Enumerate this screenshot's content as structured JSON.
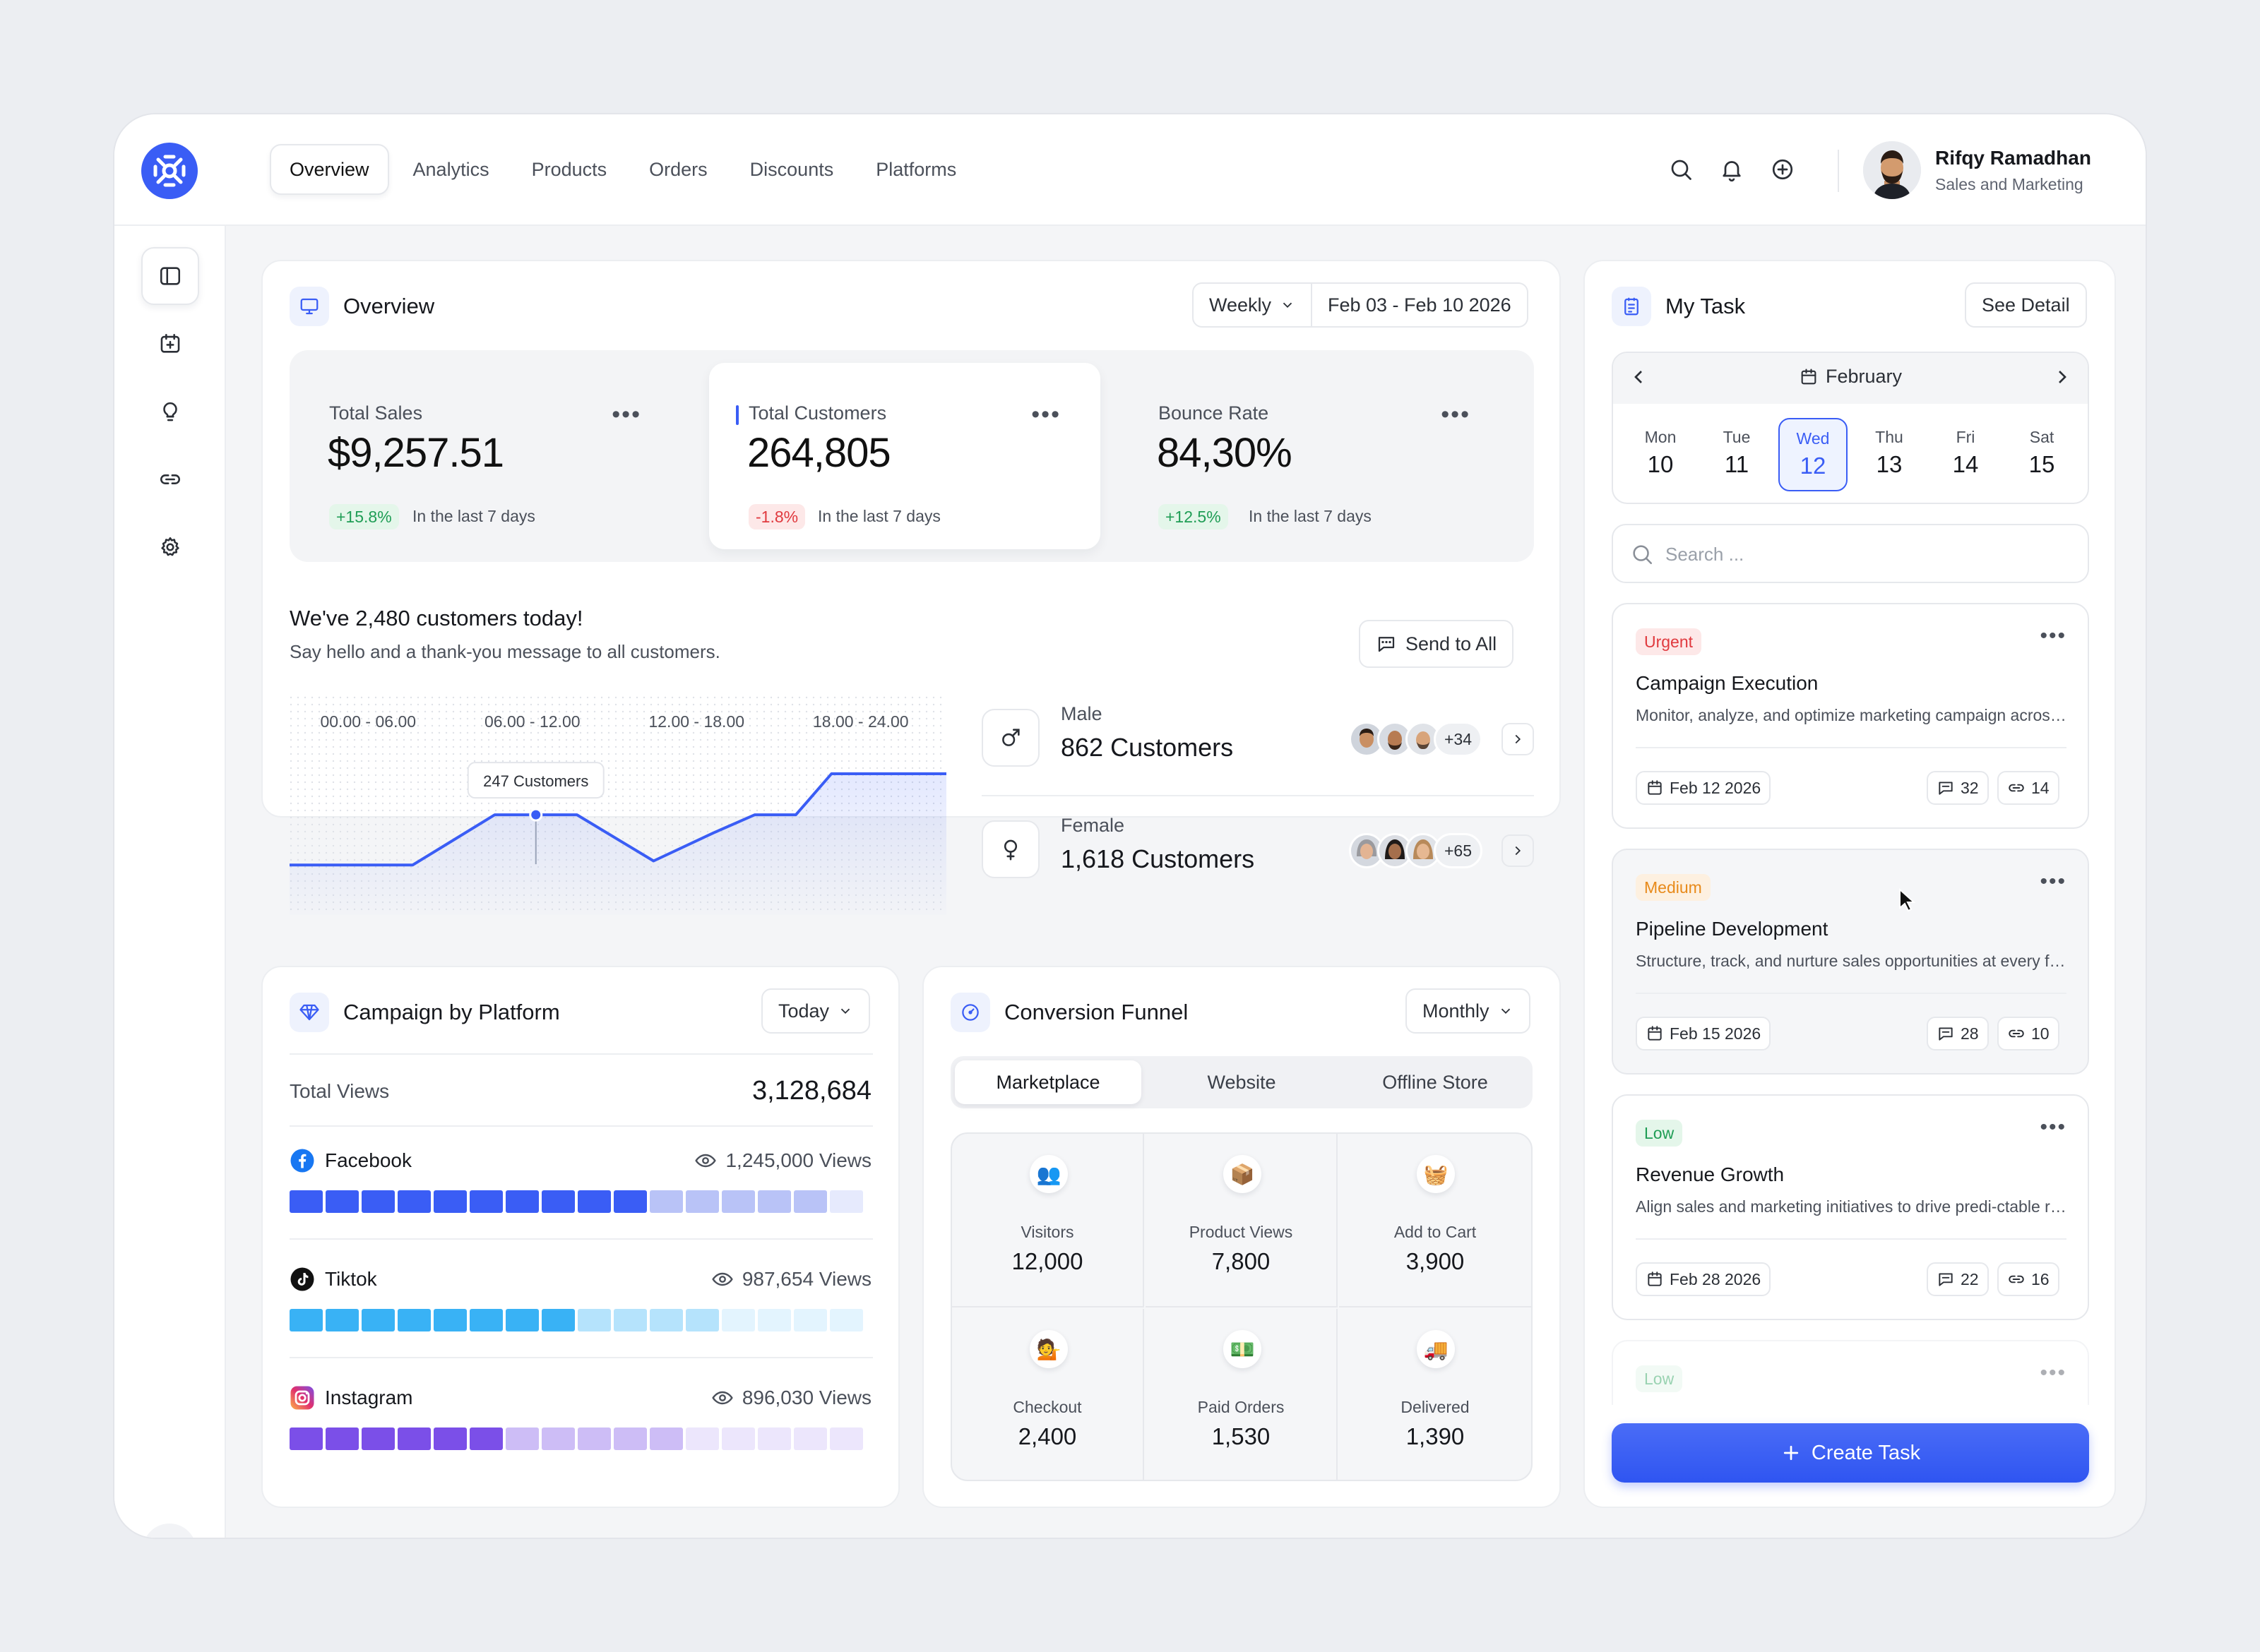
{
  "nav": {
    "items": [
      "Overview",
      "Analytics",
      "Products",
      "Orders",
      "Discounts",
      "Platforms"
    ],
    "active": "Overview"
  },
  "user": {
    "name": "Rifqy Ramadhan",
    "role": "Sales and Marketing"
  },
  "topbar_icons": [
    "search-icon",
    "bell-icon",
    "plus-circle-icon"
  ],
  "sidebar_icons": [
    "sidebar-panel-icon",
    "calendar-add-icon",
    "lightbulb-icon",
    "link-icon",
    "settings-icon"
  ],
  "theme": {
    "dark": "moon-icon",
    "light": "sun-icon",
    "active": "light"
  },
  "overview": {
    "title": "Overview",
    "period": "Weekly",
    "date_range": "Feb 03 - Feb 10 2026",
    "stats": [
      {
        "label": "Total Sales",
        "value": "$9,257.51",
        "change": "+15.8%",
        "trend": "up",
        "note": "In the last 7 days"
      },
      {
        "label": "Total Customers",
        "value": "264,805",
        "change": "-1.8%",
        "trend": "down",
        "note": "In the last 7 days"
      },
      {
        "label": "Bounce Rate",
        "value": "84,30%",
        "change": "+12.5%",
        "trend": "up",
        "note": "In the last 7 days"
      }
    ],
    "customers_heading": "We've 2,480 customers today!",
    "customers_sub": "Say hello and a thank-you message to all customers.",
    "send_button": "Send to All",
    "tooltip": "247 Customers",
    "demographics": [
      {
        "label": "Male",
        "value": "862 Customers",
        "more": "+34"
      },
      {
        "label": "Female",
        "value": "1,618 Customers",
        "more": "+65"
      }
    ]
  },
  "chart_data": {
    "type": "line",
    "x_bands": [
      "00.00 - 06.00",
      "06.00 - 12.00",
      "12.00 - 18.00",
      "18.00 - 24.00"
    ],
    "highlight": {
      "label": "247 Customers",
      "value": 247
    },
    "series": [
      {
        "values": [
          {
            "x": 0,
            "y": 60
          },
          {
            "x": 4.5,
            "y": 60
          },
          {
            "x": 7.5,
            "y": 247
          },
          {
            "x": 10.5,
            "y": 247
          },
          {
            "x": 13.3,
            "y": 75
          },
          {
            "x": 15.5,
            "y": 180
          },
          {
            "x": 17,
            "y": 247
          },
          {
            "x": 18.5,
            "y": 247
          },
          {
            "x": 19.8,
            "y": 400
          },
          {
            "x": 24,
            "y": 400
          }
        ]
      }
    ],
    "accent": "#3a5df5"
  },
  "campaign": {
    "title": "Campaign by Platform",
    "period": "Today",
    "total_label": "Total Views",
    "total_value": "3,128,684",
    "platforms": [
      {
        "name": "Facebook",
        "views": "1,245,000 Views",
        "icon": "facebook-icon",
        "share": 0.65,
        "color": "#3a5df5",
        "light": "#b9c3f7",
        "faint": "#e6eafd"
      },
      {
        "name": "Tiktok",
        "views": "987,654 Views",
        "icon": "tiktok-icon",
        "share": 0.5,
        "color": "#39b2f5",
        "light": "#b5e3fc",
        "faint": "#e3f4fe"
      },
      {
        "name": "Instagram",
        "views": "896,030 Views",
        "icon": "instagram-icon",
        "share": 0.4,
        "color": "#7b4fe8",
        "light": "#cdbdf6",
        "faint": "#ece6fc"
      }
    ]
  },
  "funnel": {
    "title": "Conversion Funnel",
    "period": "Monthly",
    "tabs": [
      "Marketplace",
      "Website",
      "Offline Store"
    ],
    "active_tab": "Marketplace",
    "stages": [
      {
        "label": "Visitors",
        "value": "12,000",
        "icon": "visitors-icon",
        "glyph": "👥"
      },
      {
        "label": "Product Views",
        "value": "7,800",
        "icon": "package-icon",
        "glyph": "📦"
      },
      {
        "label": "Add to Cart",
        "value": "3,900",
        "icon": "basket-icon",
        "glyph": "🧺"
      },
      {
        "label": "Checkout",
        "value": "2,400",
        "icon": "checkout-icon",
        "glyph": "💁"
      },
      {
        "label": "Paid Orders",
        "value": "1,530",
        "icon": "money-icon",
        "glyph": "💵"
      },
      {
        "label": "Delivered",
        "value": "1,390",
        "icon": "delivery-truck-icon",
        "glyph": "🚚"
      }
    ]
  },
  "tasks": {
    "title": "My Task",
    "see_detail": "See Detail",
    "month": "February",
    "days": [
      {
        "name": "Mon",
        "num": "10"
      },
      {
        "name": "Tue",
        "num": "11"
      },
      {
        "name": "Wed",
        "num": "12"
      },
      {
        "name": "Thu",
        "num": "13"
      },
      {
        "name": "Fri",
        "num": "14"
      },
      {
        "name": "Sat",
        "num": "15"
      }
    ],
    "selected_day": "12",
    "search_placeholder": "Search ...",
    "items": [
      {
        "priority": "Urgent",
        "title": "Campaign Execution",
        "desc": "Monitor, analyze, and optimize marketing campaign across channels",
        "date": "Feb 12 2026",
        "comments": "32",
        "links": "14"
      },
      {
        "priority": "Medium",
        "title": "Pipeline Development",
        "desc": "Structure, track, and nurture sales opportunities at every funnel stage",
        "date": "Feb 15 2026",
        "comments": "28",
        "links": "10"
      },
      {
        "priority": "Low",
        "title": "Revenue Growth",
        "desc": "Align sales and marketing initiatives to drive predi-ctable revenue",
        "date": "Feb 28 2026",
        "comments": "22",
        "links": "16"
      },
      {
        "priority": "Low"
      }
    ],
    "create_button": "Create Task"
  }
}
